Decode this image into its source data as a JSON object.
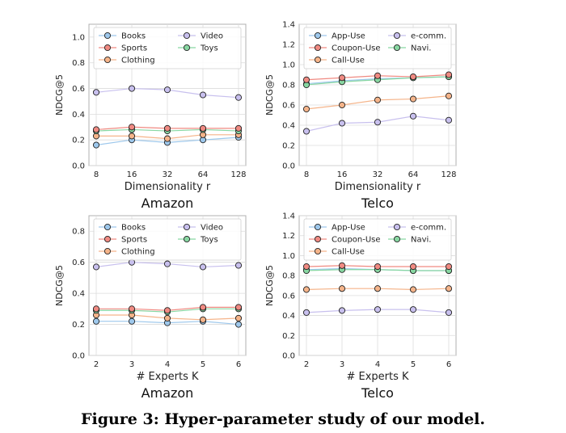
{
  "figure": {
    "caption": "Figure 3: Hyper-parameter study of our model."
  },
  "colors": {
    "Books": "#9ec8ec",
    "Clothing": "#f5b48a",
    "Toys": "#88d7a2",
    "Sports": "#f08a82",
    "Video": "#c8c0ee",
    "App-Use": "#9ec8ec",
    "Call-Use": "#f5b48a",
    "Navi.": "#88d7a2",
    "Coupon-Use": "#f08a82",
    "e-comm.": "#c8c0ee"
  },
  "chart_data": [
    {
      "type": "line",
      "title": "Amazon",
      "xlabel": "Dimensionality r",
      "ylabel": "NDCG@5",
      "categories": [
        "8",
        "16",
        "32",
        "64",
        "128"
      ],
      "ylim": [
        0,
        1.1
      ],
      "yticks": [
        "0.0",
        "0.2",
        "0.4",
        "0.6",
        "0.8",
        "1.0"
      ],
      "grid": true,
      "legend_placement": "top",
      "legend_columns": 2,
      "series": [
        {
          "name": "Books",
          "values": [
            0.16,
            0.2,
            0.18,
            0.2,
            0.22
          ]
        },
        {
          "name": "Clothing",
          "values": [
            0.23,
            0.23,
            0.21,
            0.24,
            0.24
          ]
        },
        {
          "name": "Toys",
          "values": [
            0.27,
            0.28,
            0.27,
            0.28,
            0.27
          ]
        },
        {
          "name": "Sports",
          "values": [
            0.28,
            0.3,
            0.29,
            0.29,
            0.29
          ]
        },
        {
          "name": "Video",
          "values": [
            0.57,
            0.6,
            0.59,
            0.55,
            0.53
          ]
        }
      ]
    },
    {
      "type": "line",
      "title": "Telco",
      "xlabel": "Dimensionality r",
      "ylabel": "NDCG@5",
      "categories": [
        "8",
        "16",
        "32",
        "64",
        "128"
      ],
      "ylim": [
        0,
        1.4
      ],
      "yticks": [
        "0.0",
        "0.2",
        "0.4",
        "0.6",
        "0.8",
        "1.0",
        "1.2",
        "1.4"
      ],
      "grid": true,
      "legend_placement": "top",
      "legend_columns": 2,
      "series": [
        {
          "name": "App-Use",
          "values": [
            0.81,
            0.84,
            0.86,
            0.87,
            0.88
          ]
        },
        {
          "name": "Call-Use",
          "values": [
            0.56,
            0.6,
            0.65,
            0.66,
            0.69
          ]
        },
        {
          "name": "Navi.",
          "values": [
            0.8,
            0.83,
            0.85,
            0.87,
            0.88
          ]
        },
        {
          "name": "Coupon-Use",
          "values": [
            0.85,
            0.87,
            0.89,
            0.88,
            0.9
          ]
        },
        {
          "name": "e-comm.",
          "values": [
            0.34,
            0.42,
            0.43,
            0.49,
            0.45
          ]
        }
      ]
    },
    {
      "type": "line",
      "title": "Amazon",
      "xlabel": "# Experts K",
      "ylabel": "NDCG@5",
      "categories": [
        "2",
        "3",
        "4",
        "5",
        "6"
      ],
      "ylim": [
        0,
        0.9
      ],
      "yticks": [
        "0.0",
        "0.2",
        "0.4",
        "0.6",
        "0.8"
      ],
      "grid": true,
      "legend_placement": "top",
      "legend_columns": 2,
      "series": [
        {
          "name": "Books",
          "values": [
            0.22,
            0.22,
            0.21,
            0.22,
            0.2
          ]
        },
        {
          "name": "Clothing",
          "values": [
            0.26,
            0.26,
            0.24,
            0.23,
            0.24
          ]
        },
        {
          "name": "Toys",
          "values": [
            0.29,
            0.29,
            0.28,
            0.3,
            0.3
          ]
        },
        {
          "name": "Sports",
          "values": [
            0.3,
            0.3,
            0.29,
            0.31,
            0.31
          ]
        },
        {
          "name": "Video",
          "values": [
            0.57,
            0.6,
            0.59,
            0.57,
            0.58
          ]
        }
      ]
    },
    {
      "type": "line",
      "title": "Telco",
      "xlabel": "# Experts K",
      "ylabel": "NDCG@5",
      "categories": [
        "2",
        "3",
        "4",
        "5",
        "6"
      ],
      "ylim": [
        0,
        1.4
      ],
      "yticks": [
        "0.0",
        "0.2",
        "0.4",
        "0.6",
        "0.8",
        "1.0",
        "1.2",
        "1.4"
      ],
      "grid": true,
      "legend_placement": "top",
      "legend_columns": 2,
      "series": [
        {
          "name": "App-Use",
          "values": [
            0.86,
            0.87,
            0.86,
            0.85,
            0.85
          ]
        },
        {
          "name": "Call-Use",
          "values": [
            0.66,
            0.67,
            0.67,
            0.66,
            0.67
          ]
        },
        {
          "name": "Navi.",
          "values": [
            0.85,
            0.86,
            0.86,
            0.85,
            0.85
          ]
        },
        {
          "name": "Coupon-Use",
          "values": [
            0.89,
            0.9,
            0.89,
            0.89,
            0.89
          ]
        },
        {
          "name": "e-comm.",
          "values": [
            0.43,
            0.45,
            0.46,
            0.46,
            0.43
          ]
        }
      ]
    }
  ]
}
